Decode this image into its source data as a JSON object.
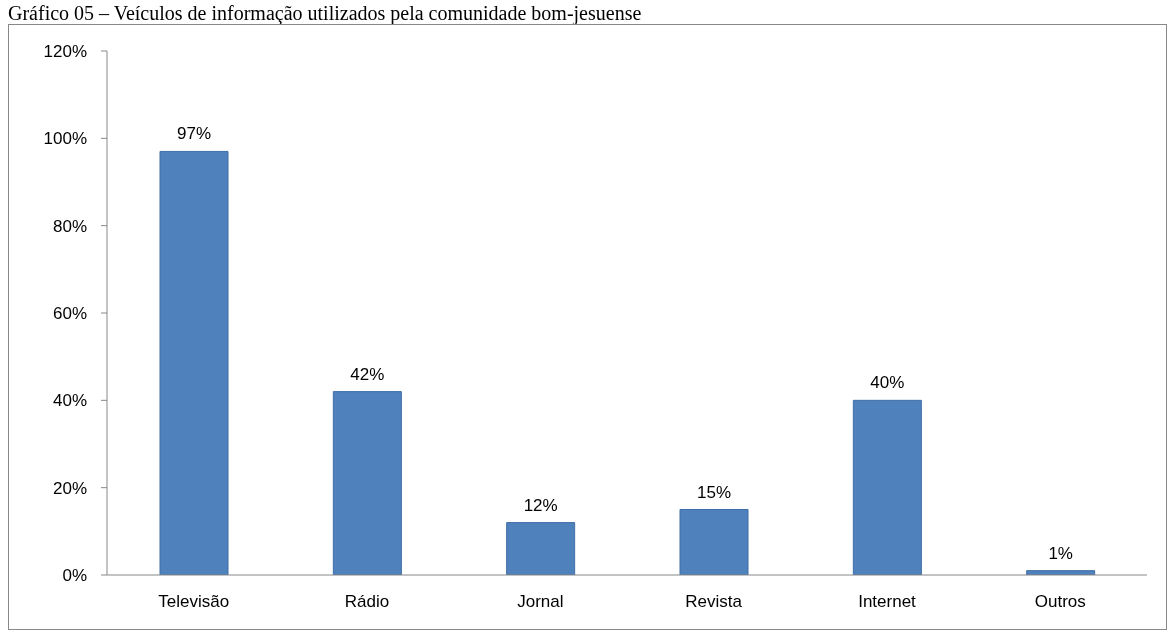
{
  "chart_data": {
    "type": "bar",
    "title": "Gráfico 05 – Veículos de informação utilizados pela comunidade bom-jesuense",
    "categories": [
      "Televisão",
      "Rádio",
      "Jornal",
      "Revista",
      "Internet",
      "Outros"
    ],
    "values": [
      97,
      42,
      12,
      15,
      40,
      1
    ],
    "value_labels": [
      "97%",
      "42%",
      "12%",
      "15%",
      "40%",
      "1%"
    ],
    "color": "#4f81bd",
    "ylim": [
      0,
      120
    ],
    "yticks": [
      {
        "value": 0,
        "label": "0%"
      },
      {
        "value": 20,
        "label": "20%"
      },
      {
        "value": 40,
        "label": "40%"
      },
      {
        "value": 60,
        "label": "60%"
      },
      {
        "value": 80,
        "label": "80%"
      },
      {
        "value": 100,
        "label": "100%"
      },
      {
        "value": 120,
        "label": "120%"
      }
    ],
    "grid": false,
    "legend": false
  }
}
